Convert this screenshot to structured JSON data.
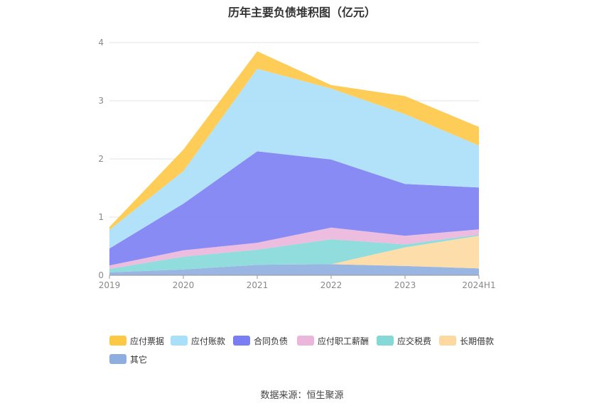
{
  "chart_data": {
    "type": "area",
    "stacked": true,
    "title": "历年主要负债堆积图（亿元）",
    "categories": [
      "2019",
      "2020",
      "2021",
      "2022",
      "2023",
      "2024H1"
    ],
    "ylim": [
      0,
      4
    ],
    "yticks": [
      "0",
      "1",
      "2",
      "3",
      "4"
    ],
    "grid": true,
    "legend_position": "bottom",
    "series": [
      {
        "name": "其它",
        "color": "#8eaee0",
        "values": [
          0.05,
          0.1,
          0.18,
          0.19,
          0.16,
          0.12
        ]
      },
      {
        "name": "长期借款",
        "color": "#fdd9a0",
        "values": [
          0.0,
          0.0,
          0.0,
          0.0,
          0.32,
          0.56
        ]
      },
      {
        "name": "应交税费",
        "color": "#85d8d8",
        "values": [
          0.06,
          0.22,
          0.26,
          0.43,
          0.05,
          0.02
        ]
      },
      {
        "name": "应付职工薪酬",
        "color": "#eab6dc",
        "values": [
          0.06,
          0.11,
          0.12,
          0.2,
          0.15,
          0.09
        ]
      },
      {
        "name": "合同负债",
        "color": "#7b7ef3",
        "values": [
          0.29,
          0.8,
          1.57,
          1.17,
          0.89,
          0.72
        ]
      },
      {
        "name": "应付账款",
        "color": "#aadffa",
        "values": [
          0.32,
          0.56,
          1.42,
          1.22,
          1.2,
          0.72
        ]
      },
      {
        "name": "应付票据",
        "color": "#fdc846",
        "values": [
          0.05,
          0.37,
          0.3,
          0.06,
          0.31,
          0.32
        ]
      }
    ],
    "legend_order": [
      "应付票据",
      "应付账款",
      "合同负债",
      "应付职工薪酬",
      "应交税费",
      "长期借款",
      "其它"
    ]
  },
  "source": "数据来源：恒生聚源"
}
